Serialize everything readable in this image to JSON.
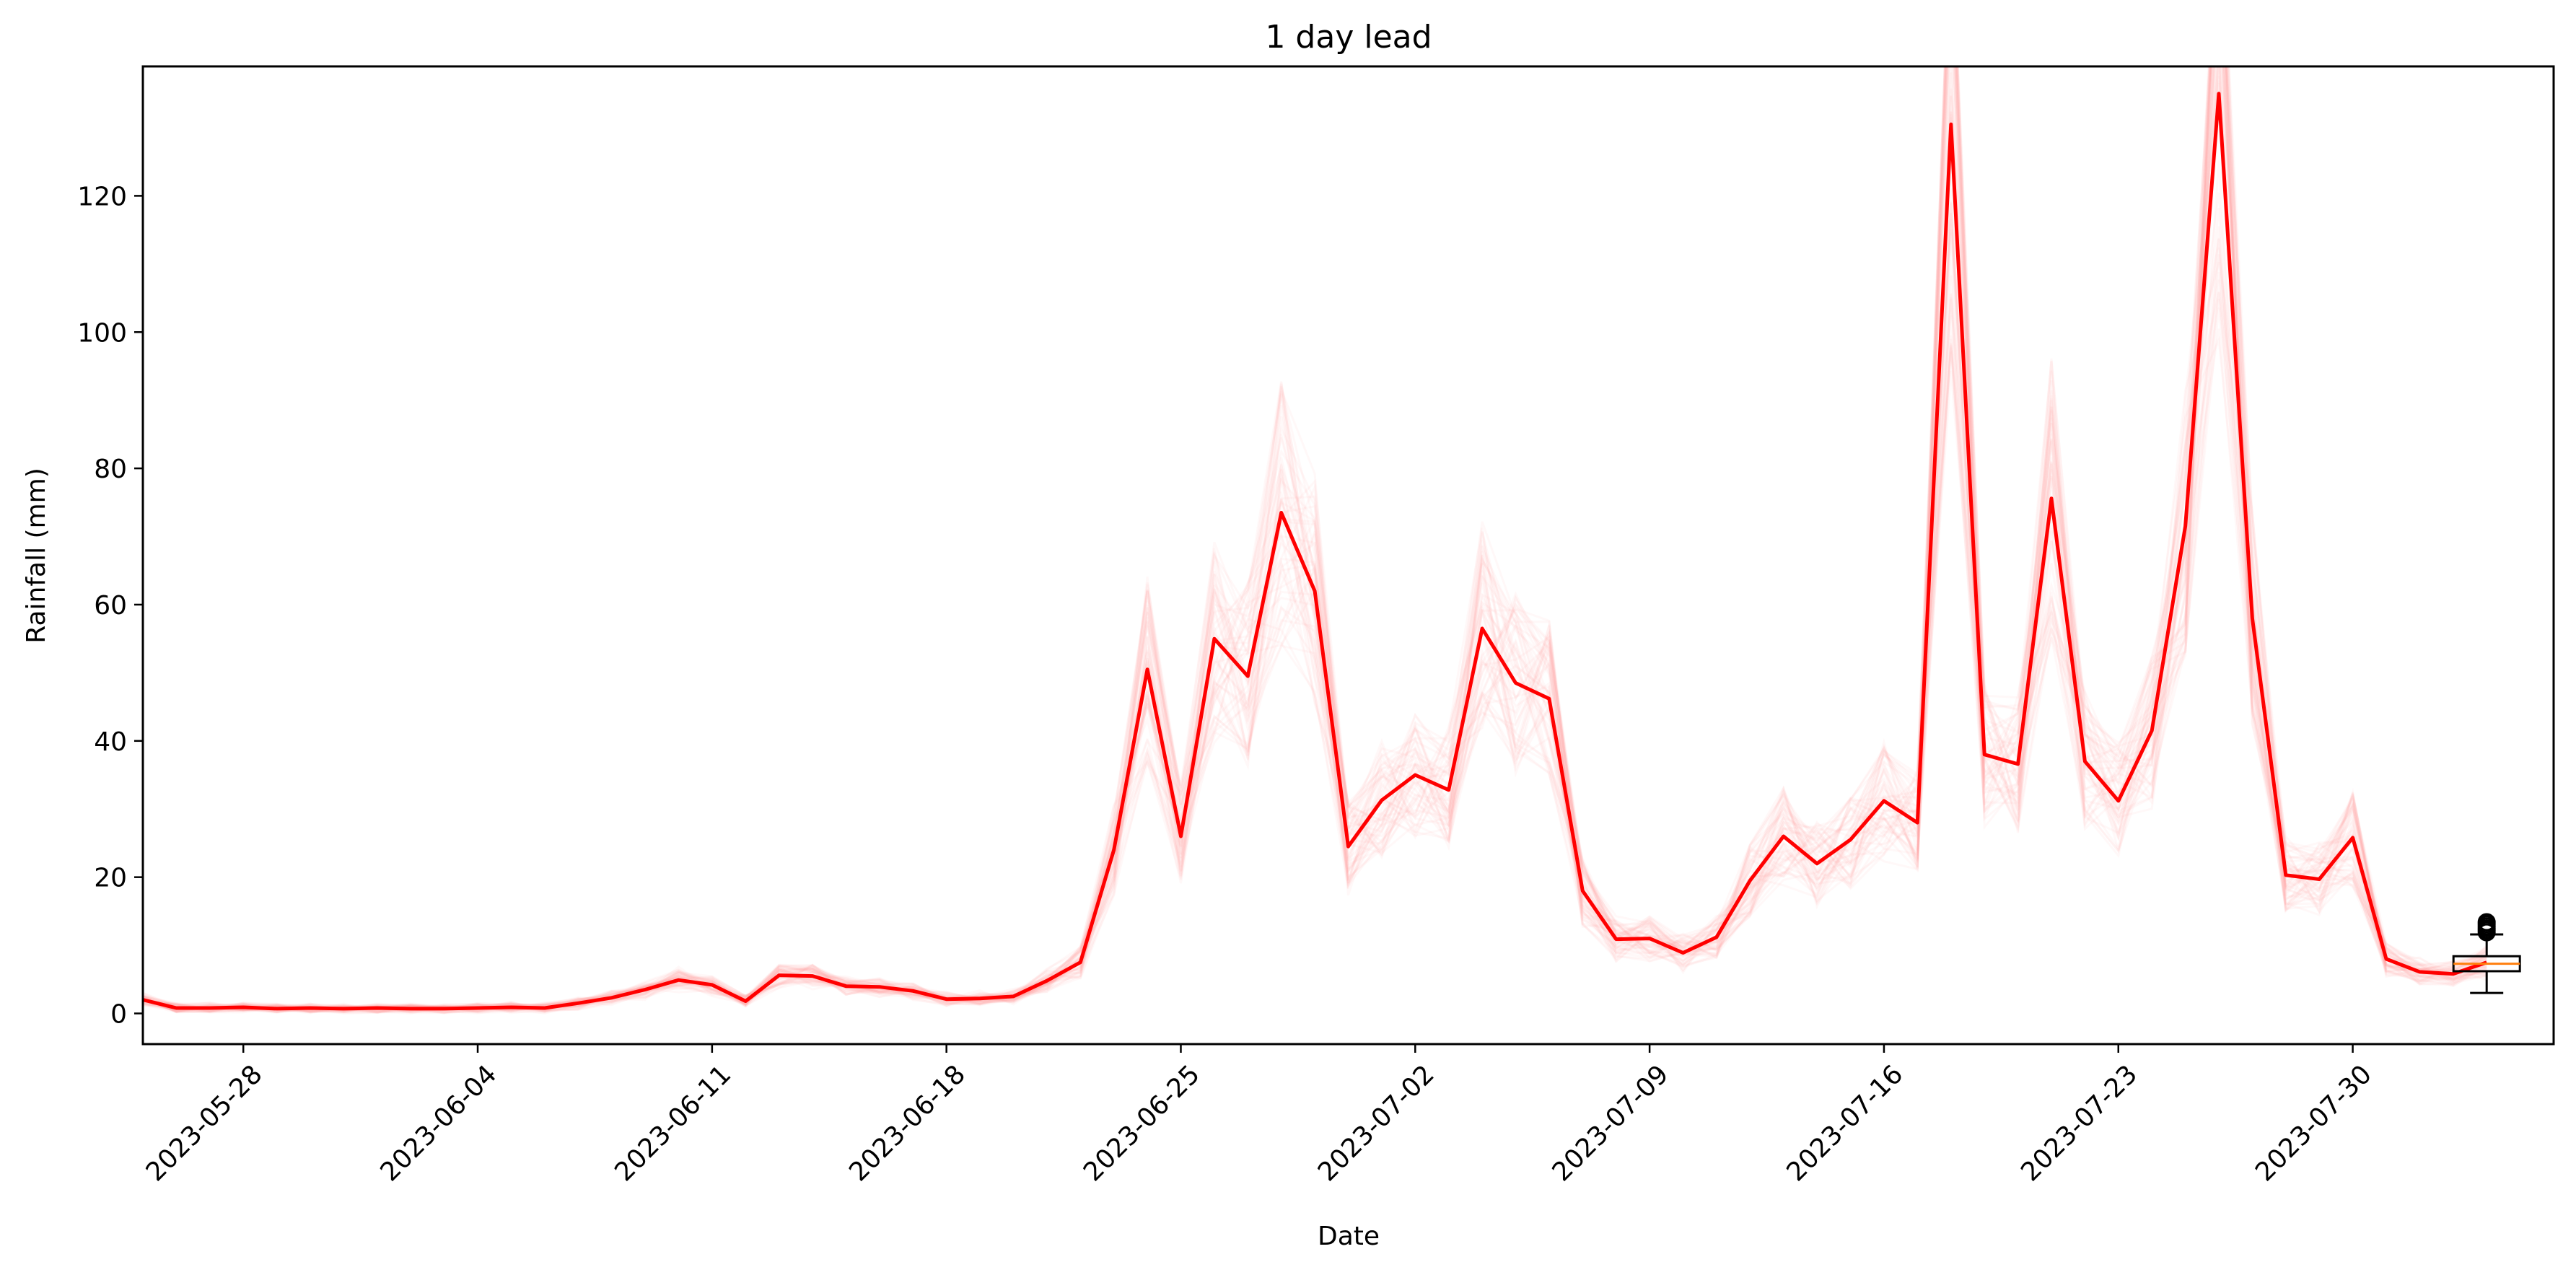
{
  "chart_data": {
    "type": "line",
    "title": "1 day lead",
    "xlabel": "Date",
    "ylabel": "Rainfall (mm)",
    "xlim": [
      "2023-05-25",
      "2023-08-05"
    ],
    "ylim": [
      -4.5,
      139
    ],
    "x_ticks": [
      "2023-05-28",
      "2023-06-04",
      "2023-06-11",
      "2023-06-18",
      "2023-06-25",
      "2023-07-02",
      "2023-07-09",
      "2023-07-16",
      "2023-07-23",
      "2023-07-30"
    ],
    "y_ticks": [
      0,
      20,
      40,
      60,
      80,
      100,
      120
    ],
    "grid": false,
    "ensemble_color": "#ff9999",
    "series": [
      {
        "color": "#ff0000",
        "x": [
          "2023-05-25",
          "2023-05-26",
          "2023-05-27",
          "2023-05-28",
          "2023-05-29",
          "2023-05-30",
          "2023-05-31",
          "2023-06-01",
          "2023-06-02",
          "2023-06-03",
          "2023-06-04",
          "2023-06-05",
          "2023-06-06",
          "2023-06-07",
          "2023-06-08",
          "2023-06-09",
          "2023-06-10",
          "2023-06-11",
          "2023-06-12",
          "2023-06-13",
          "2023-06-14",
          "2023-06-15",
          "2023-06-16",
          "2023-06-17",
          "2023-06-18",
          "2023-06-19",
          "2023-06-20",
          "2023-06-21",
          "2023-06-22",
          "2023-06-23",
          "2023-06-24",
          "2023-06-25",
          "2023-06-26",
          "2023-06-27",
          "2023-06-28",
          "2023-06-29",
          "2023-06-30",
          "2023-07-01",
          "2023-07-02",
          "2023-07-03",
          "2023-07-04",
          "2023-07-05",
          "2023-07-06",
          "2023-07-07",
          "2023-07-08",
          "2023-07-09",
          "2023-07-10",
          "2023-07-11",
          "2023-07-12",
          "2023-07-13",
          "2023-07-14",
          "2023-07-15",
          "2023-07-16",
          "2023-07-17",
          "2023-07-18",
          "2023-07-19",
          "2023-07-20",
          "2023-07-21",
          "2023-07-22",
          "2023-07-23",
          "2023-07-24",
          "2023-07-25",
          "2023-07-26",
          "2023-07-27",
          "2023-07-28",
          "2023-07-29",
          "2023-07-30",
          "2023-07-31",
          "2023-08-01",
          "2023-08-02",
          "2023-08-03"
        ],
        "values": [
          2.0,
          0.8,
          0.8,
          0.9,
          0.7,
          0.8,
          0.7,
          0.8,
          0.7,
          0.7,
          0.8,
          0.9,
          0.8,
          1.5,
          2.3,
          3.5,
          4.9,
          4.2,
          1.8,
          5.6,
          5.5,
          4.0,
          3.9,
          3.3,
          2.1,
          2.2,
          2.5,
          4.8,
          7.5,
          24.0,
          50.5,
          26.0,
          55.0,
          49.5,
          73.5,
          62.0,
          24.5,
          31.3,
          35.0,
          32.8,
          56.5,
          48.5,
          46.2,
          18.0,
          10.9,
          11.0,
          8.9,
          11.2,
          19.5,
          26.0,
          22.0,
          25.5,
          31.2,
          28.0,
          130.5,
          38.0,
          36.6,
          75.6,
          37.0,
          31.2,
          41.5,
          71.5,
          135.0,
          58.0,
          20.3,
          19.7,
          25.8,
          8.0,
          6.1,
          5.8,
          7.5
        ]
      }
    ],
    "boxplot": {
      "x": "2023-08-03",
      "whisker_low": 3.0,
      "q1": 6.2,
      "median": 7.3,
      "q3": 8.4,
      "whisker_high": 11.6,
      "fliers": [
        11.9,
        12.2,
        12.5,
        12.8,
        13.1,
        13.4
      ],
      "median_color": "#ff7f0e"
    }
  }
}
